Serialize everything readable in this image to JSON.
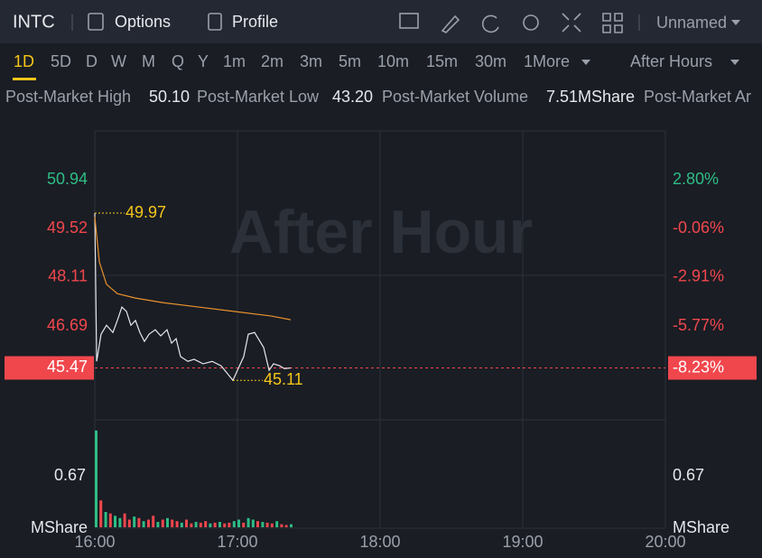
{
  "header": {
    "symbol": "INTC",
    "tabs": [
      "Options",
      "Profile"
    ],
    "layout": "Unnamed"
  },
  "periods": [
    "1D",
    "5D",
    "D",
    "W",
    "M",
    "Q",
    "Y",
    "1m",
    "2m",
    "3m",
    "5m",
    "10m",
    "15m",
    "30m",
    "1"
  ],
  "more": "More",
  "session": "After Hours",
  "stats": [
    {
      "label": "Post-Market High",
      "value": "50.10"
    },
    {
      "label": "Post-Market Low",
      "value": "43.20"
    },
    {
      "label": "Post-Market Volume",
      "value": "7.51MShare"
    },
    {
      "label": "Post-Market Ar"
    }
  ],
  "chart_data": {
    "type": "line",
    "watermark": "After Hour",
    "xlim": [
      16,
      20
    ],
    "xticks": [
      {
        "value": 16,
        "label": "16:00"
      },
      {
        "value": 17,
        "label": "17:00"
      },
      {
        "value": 18,
        "label": "18:00"
      },
      {
        "value": 19,
        "label": "19:00"
      },
      {
        "value": 20,
        "label": "20:00"
      }
    ],
    "ylim": [
      43.96,
      52.36
    ],
    "yticks": [
      50.94,
      49.52,
      48.11,
      46.69
    ],
    "y2lim": [
      -11.27,
      5.66
    ],
    "y2ticks": [
      {
        "value": 2.8,
        "label": "2.80%"
      },
      {
        "value": -0.06,
        "label": "-0.06%"
      },
      {
        "value": -2.91,
        "label": "-2.91%"
      },
      {
        "value": -5.77,
        "label": "-5.77%"
      }
    ],
    "up_color": "#2ebd85",
    "down_color": "#f0474d",
    "series": [
      {
        "color": "#e6e8ec",
        "x": [
          16.0,
          16.013,
          16.044,
          16.082,
          16.127,
          16.158,
          16.19,
          16.222,
          16.253,
          16.285,
          16.316,
          16.348,
          16.38,
          16.424,
          16.462,
          16.506,
          16.538,
          16.57,
          16.601,
          16.652,
          16.696,
          16.759,
          16.823,
          16.886,
          16.968,
          17.0,
          17.044,
          17.076,
          17.12,
          17.158,
          17.184,
          17.222,
          17.253,
          17.297,
          17.329,
          17.373
        ],
        "values": [
          49.97,
          45.66,
          46.45,
          46.71,
          46.5,
          46.85,
          47.24,
          47.11,
          46.71,
          46.85,
          46.5,
          46.24,
          46.45,
          46.58,
          46.4,
          46.58,
          46.19,
          46.32,
          45.8,
          45.66,
          45.72,
          45.59,
          45.66,
          45.53,
          45.11,
          45.4,
          45.8,
          46.45,
          46.5,
          46.24,
          46.06,
          45.4,
          45.59,
          45.53,
          45.45,
          45.47
        ]
      },
      {
        "color": "#e8912d",
        "x": [
          16.0,
          16.032,
          16.082,
          16.158,
          16.285,
          16.475,
          16.728,
          16.981,
          17.234,
          17.373
        ],
        "values": [
          49.86,
          48.55,
          47.9,
          47.63,
          47.5,
          47.37,
          47.24,
          47.11,
          46.98,
          46.87
        ]
      }
    ],
    "high_label": {
      "value": 49.97,
      "x": 16.0
    },
    "low_label": {
      "value": 45.11,
      "x": 16.968
    },
    "last_price": 45.47,
    "last_change": {
      "value": -8.23,
      "label": "-8.23%"
    },
    "volume": {
      "ylim": [
        0,
        1.34
      ],
      "yticks": [
        0.67
      ],
      "unit": "MShare",
      "x": [
        16.0,
        16.033,
        16.067,
        16.1,
        16.133,
        16.167,
        16.2,
        16.233,
        16.267,
        16.3,
        16.333,
        16.367,
        16.4,
        16.433,
        16.467,
        16.5,
        16.533,
        16.567,
        16.6,
        16.633,
        16.667,
        16.7,
        16.733,
        16.767,
        16.8,
        16.833,
        16.867,
        16.9,
        16.933,
        16.967,
        17.0,
        17.033,
        17.067,
        17.1,
        17.133,
        17.167,
        17.2,
        17.233,
        17.267,
        17.3,
        17.333,
        17.367
      ],
      "values": [
        1.26,
        0.35,
        0.2,
        0.18,
        0.15,
        0.12,
        0.18,
        0.1,
        0.14,
        0.12,
        0.08,
        0.1,
        0.15,
        0.07,
        0.1,
        0.12,
        0.1,
        0.08,
        0.06,
        0.1,
        0.05,
        0.07,
        0.06,
        0.08,
        0.05,
        0.06,
        0.07,
        0.05,
        0.06,
        0.08,
        0.1,
        0.06,
        0.12,
        0.1,
        0.08,
        0.07,
        0.06,
        0.05,
        0.08,
        0.04,
        0.03,
        0.04
      ],
      "colors": [
        "#2ebd85",
        "#f0474d",
        "#2ebd85",
        "#f0474d",
        "#2ebd85",
        "#2ebd85",
        "#f0474d",
        "#f0474d",
        "#2ebd85",
        "#f0474d",
        "#2ebd85",
        "#f0474d",
        "#f0474d",
        "#2ebd85",
        "#f0474d",
        "#2ebd85",
        "#f0474d",
        "#f0474d",
        "#2ebd85",
        "#f0474d",
        "#f0474d",
        "#2ebd85",
        "#f0474d",
        "#f0474d",
        "#2ebd85",
        "#f0474d",
        "#2ebd85",
        "#f0474d",
        "#f0474d",
        "#2ebd85",
        "#2ebd85",
        "#f0474d",
        "#2ebd85",
        "#2ebd85",
        "#f0474d",
        "#2ebd85",
        "#f0474d",
        "#f0474d",
        "#2ebd85",
        "#f0474d",
        "#f0474d",
        "#2ebd85"
      ]
    }
  }
}
